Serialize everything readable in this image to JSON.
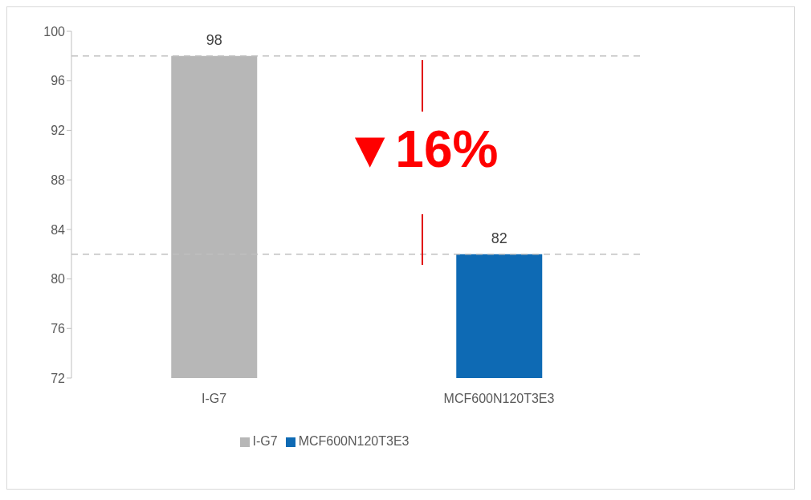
{
  "chart_data": {
    "type": "bar",
    "categories": [
      "I-G7",
      "MCF600N120T3E3"
    ],
    "series": [
      {
        "name": "I-G7",
        "color": "#b7b7b7",
        "values": [
          98,
          null
        ]
      },
      {
        "name": "MCF600N120T3E3",
        "color": "#0e6ab4",
        "values": [
          null,
          82
        ]
      }
    ],
    "stacked": true,
    "ylim": [
      72,
      100
    ],
    "yticks": [
      72,
      76,
      80,
      84,
      88,
      92,
      96,
      100
    ],
    "data_labels": true,
    "grid": false,
    "legend": "bottom",
    "ref_lines": [
      {
        "axis": "y",
        "value": 98,
        "color": "#bfbfbf",
        "line_style": "dashed"
      },
      {
        "axis": "y",
        "value": 82,
        "color": "#bfbfbf",
        "line_style": "dashed"
      }
    ],
    "annotations": [
      "▼16%"
    ]
  }
}
